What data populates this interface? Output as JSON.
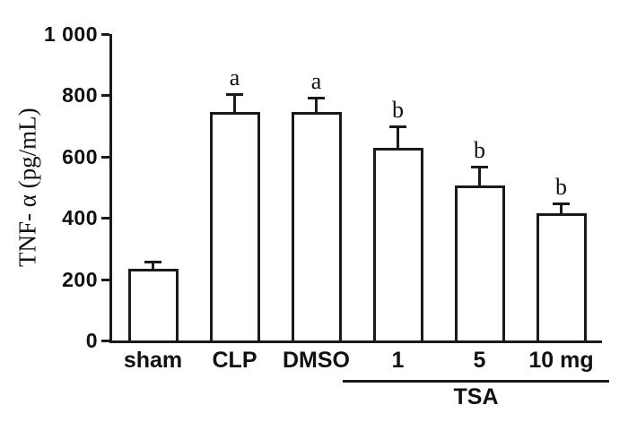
{
  "chart_data": {
    "type": "bar",
    "title": "",
    "xlabel": "",
    "ylabel": "TNF- α (pg/mL)",
    "ylim": [
      0,
      1000
    ],
    "yticks": [
      0,
      200,
      400,
      600,
      800,
      1000
    ],
    "ytick_labels": [
      "0",
      "200",
      "400",
      "600",
      "800",
      "1 000"
    ],
    "categories": [
      "sham",
      "CLP",
      "DMSO",
      "1",
      "5",
      "10 mg"
    ],
    "values": [
      235,
      745,
      745,
      630,
      505,
      415
    ],
    "errors_upper": [
      20,
      55,
      45,
      65,
      60,
      30
    ],
    "annotations": [
      "",
      "a",
      "a",
      "b",
      "b",
      "b"
    ],
    "group": {
      "label": "TSA",
      "span": [
        3,
        5
      ]
    },
    "bar_fill": "#ffffff",
    "bar_border": "#1a1a1a",
    "axis_color": "#1a1a1a",
    "grid": false,
    "legend": "none"
  }
}
